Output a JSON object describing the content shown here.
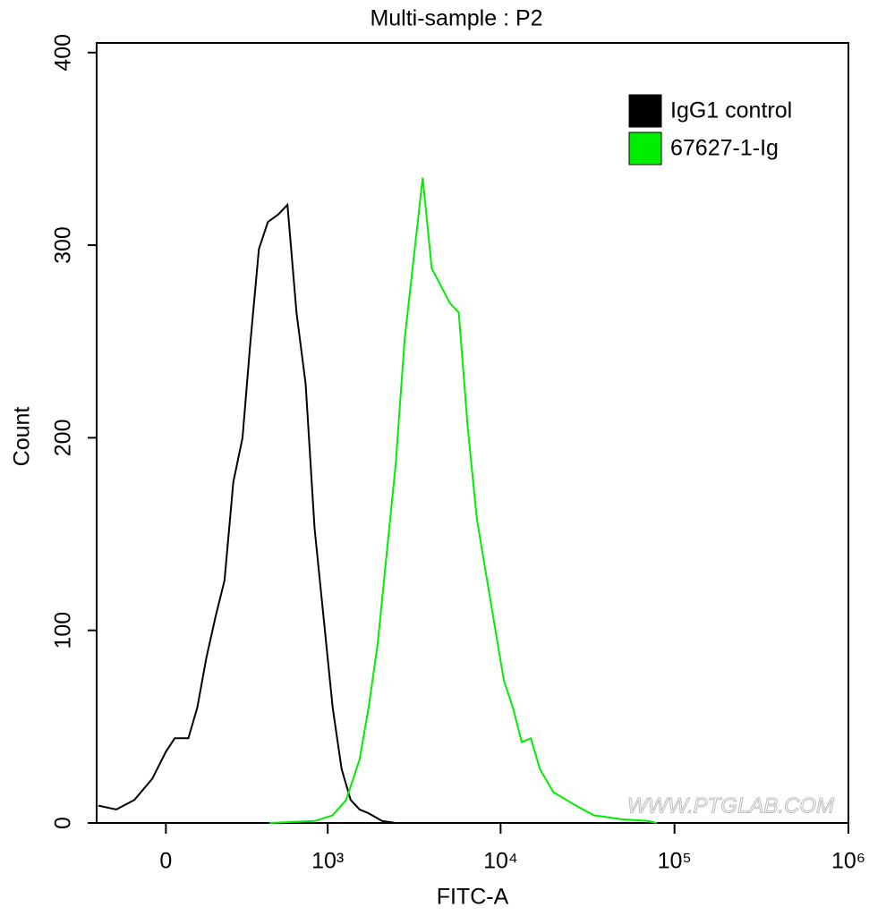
{
  "chart_data": {
    "type": "line",
    "title": "Multi-sample : P2",
    "xlabel": "FITC-A",
    "ylabel": "Count",
    "watermark": "WWW.PTGLAB.COM",
    "xscale": "biexponential",
    "xlim": [
      -250,
      1000000
    ],
    "ylim": [
      0,
      405
    ],
    "xticks": [
      0,
      {
        "value": 1000,
        "label": "10³"
      },
      {
        "value": 10000,
        "label": "10⁴"
      },
      {
        "value": 100000,
        "label": "10⁵"
      },
      {
        "value": 1000000,
        "label": "10⁶"
      }
    ],
    "yticks": [
      0,
      100,
      200,
      300,
      400
    ],
    "legend": "upper right",
    "series": [
      {
        "name": "IgG1 control",
        "color": "#000000",
        "x": [
          -242,
          -168,
          -102,
          -43,
          0,
          28,
          72,
          102,
          134,
          168,
          204,
          242,
          285,
          323,
          373,
          428,
          501,
          571,
          650,
          738,
          835,
          945,
          1069,
          1207,
          1364,
          1538,
          1735,
          2078,
          2487
        ],
        "values": [
          9,
          7,
          12,
          23,
          37,
          44,
          44,
          60,
          86,
          107,
          126,
          177,
          200,
          247,
          298,
          312,
          316,
          321,
          265,
          228,
          153,
          107,
          60,
          28,
          12,
          7,
          5,
          1,
          0
        ]
      },
      {
        "name": "67627-1-Ig",
        "color": "#00ee00",
        "x": [
          439,
          835,
          1069,
          1283,
          1538,
          1735,
          1958,
          2207,
          2487,
          2803,
          3160,
          3562,
          4015,
          4527,
          5101,
          5748,
          6478,
          7300,
          8223,
          9263,
          10439,
          11757,
          13233,
          14923,
          16827,
          20111,
          27108,
          34367,
          49266,
          70448,
          79254
        ],
        "values": [
          0,
          1,
          4,
          12,
          33,
          60,
          93,
          140,
          186,
          251,
          293,
          335,
          288,
          279,
          270,
          265,
          205,
          158,
          130,
          102,
          74,
          60,
          42,
          44,
          28,
          16,
          9,
          4,
          2,
          1,
          0
        ]
      }
    ]
  }
}
